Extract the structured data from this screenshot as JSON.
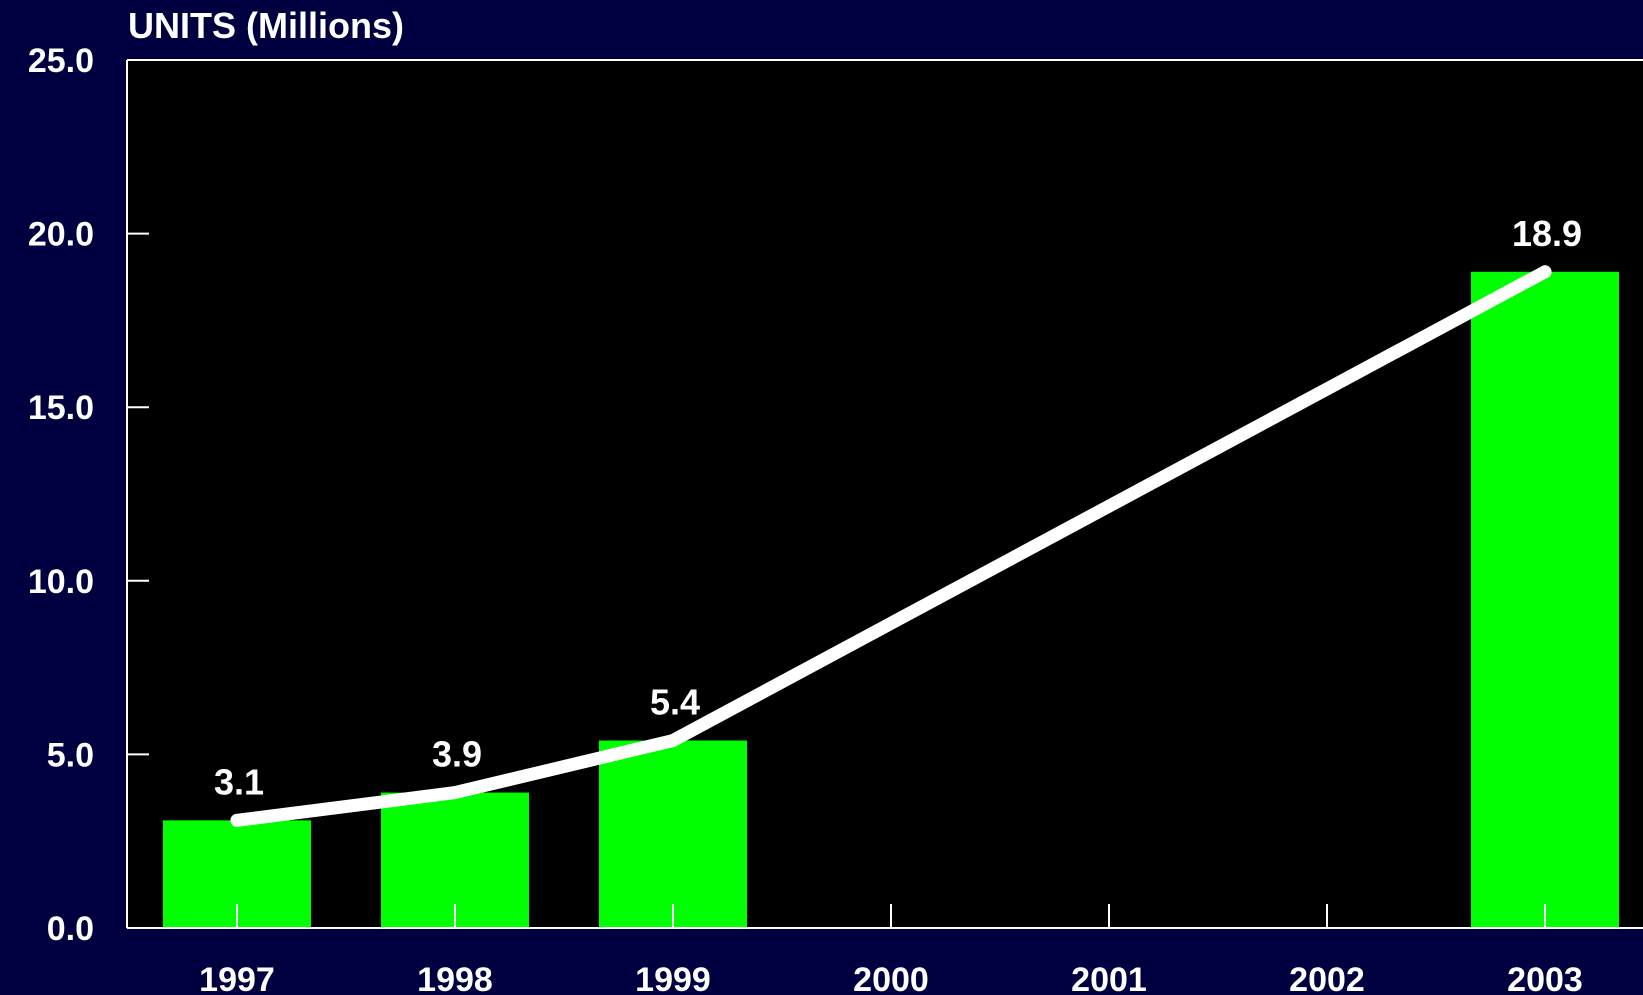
{
  "chart_data": {
    "type": "bar",
    "ylabel": "UNITS (Millions)",
    "xlabel": "",
    "title": "",
    "categories": [
      "1997",
      "1998",
      "1999",
      "2000",
      "2001",
      "2002",
      "2003"
    ],
    "series": [
      {
        "type": "bar",
        "values": [
          3.1,
          3.9,
          5.4,
          null,
          null,
          null,
          18.9
        ],
        "color": "#00ff00"
      },
      {
        "type": "line",
        "values": [
          3.1,
          3.9,
          5.4,
          null,
          null,
          null,
          18.9
        ],
        "color": "#ffffff"
      }
    ],
    "data_labels": [
      "3.1",
      "3.9",
      "5.4",
      "",
      "",
      "",
      "18.9"
    ],
    "yticks": [
      "0.0",
      "5.0",
      "10.0",
      "15.0",
      "20.0",
      "25.0"
    ],
    "ylim": [
      0,
      25
    ],
    "grid": false,
    "legend": "none"
  },
  "colors": {
    "background": "#000040",
    "plot_background": "#000000",
    "bar": "#00ff00",
    "line": "#ffffff",
    "axis": "#ffffff",
    "text": "#ffffff"
  }
}
